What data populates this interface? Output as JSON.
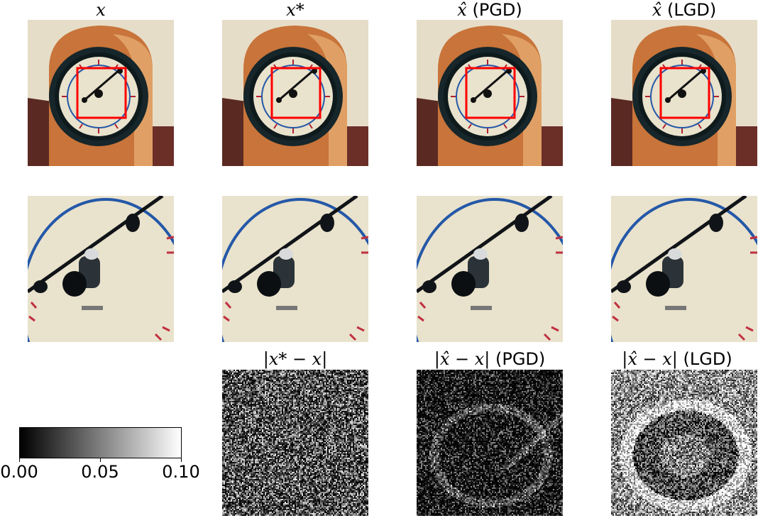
{
  "columns": [
    {
      "title_math": "x",
      "title_suffix": ""
    },
    {
      "title_math": "x*",
      "title_suffix": ""
    },
    {
      "title_math": "x̂",
      "title_suffix": "(PGD)"
    },
    {
      "title_math": "x̂",
      "title_suffix": "(LGD)"
    }
  ],
  "error_titles": [
    {
      "math": "|x* − x|",
      "suffix": ""
    },
    {
      "math": "|x̂ − x|",
      "suffix": "(PGD)"
    },
    {
      "math": "|x̂ − x|",
      "suffix": "(LGD)"
    }
  ],
  "colorbar": {
    "colormap": "gray",
    "min": 0.0,
    "max": 0.1,
    "ticks": [
      "0.00",
      "0.05",
      "0.10"
    ]
  },
  "colors": {
    "roi_box": "#ff0000",
    "clock_case": "#c8743a",
    "clock_bezel": "#16262a",
    "dial": "#e9e2cc",
    "dial_ring": "#2458a8",
    "wall": "#e6ddc8"
  }
}
